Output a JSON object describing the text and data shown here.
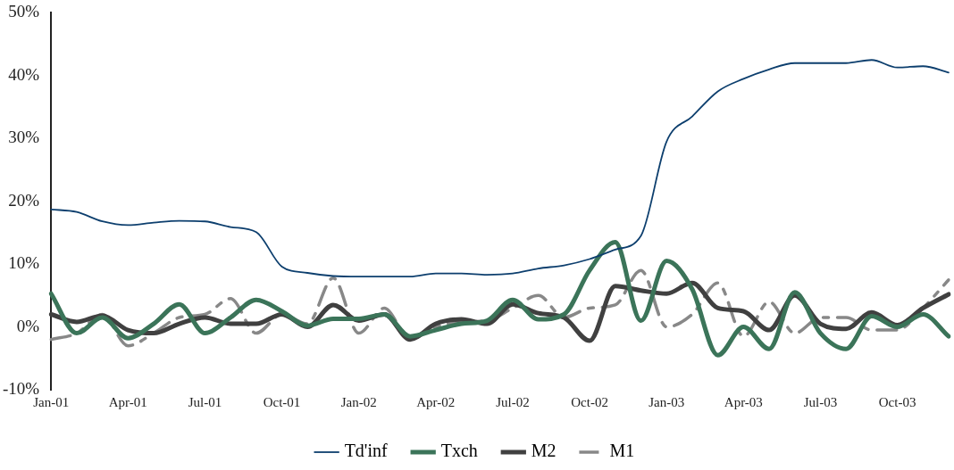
{
  "chart_data": {
    "type": "line",
    "categories": [
      "Jan-01",
      null,
      null,
      "Apr-01",
      null,
      null,
      "Jul-01",
      null,
      null,
      "Oct-01",
      null,
      null,
      "Jan-02",
      null,
      null,
      "Apr-02",
      null,
      null,
      "Jul-02",
      null,
      null,
      "Oct-02",
      null,
      null,
      "Jan-03",
      null,
      null,
      "Apr-03",
      null,
      null,
      "Jul-03",
      null,
      null,
      "Oct-03",
      null,
      null
    ],
    "series": [
      {
        "name": "Td'inf",
        "color": "#0d3f6e",
        "line_style": "solid",
        "values": [
          18.7,
          18.3,
          16.8,
          16.2,
          16.6,
          16.9,
          16.8,
          15.9,
          15.1,
          9.6,
          8.6,
          8.1,
          8.0,
          8.0,
          8.0,
          8.5,
          8.5,
          8.3,
          8.5,
          9.3,
          9.8,
          10.8,
          12.3,
          14.5,
          29.5,
          33.5,
          37.5,
          39.5,
          41,
          42,
          42,
          42,
          42.5,
          41.3,
          41.5,
          40.5
        ]
      },
      {
        "name": "Txch",
        "color": "#3b7459",
        "line_style": "solid",
        "values": [
          5.3,
          -1,
          1.5,
          -1.8,
          0.5,
          3.6,
          -1,
          1.5,
          4.3,
          2.5,
          0.2,
          1.3,
          1.3,
          2,
          -1.5,
          -0.5,
          0.5,
          1,
          4.3,
          1.2,
          2,
          9,
          13.5,
          1,
          10.5,
          6,
          -4.5,
          0,
          -3.5,
          5.5,
          -1,
          -3.5,
          1.7,
          0,
          2,
          -1.5
        ]
      },
      {
        "name": "M2",
        "color": "#404040",
        "line_style": "solid",
        "values": [
          2,
          0.8,
          1.8,
          -0.5,
          -1,
          0.5,
          1.5,
          0.5,
          0.5,
          2,
          0,
          3.5,
          1,
          2,
          -2,
          0.5,
          1.2,
          0.5,
          3.6,
          2.2,
          1.5,
          -2.2,
          6.5,
          5.8,
          5.3,
          7,
          3,
          2.5,
          -0.5,
          5,
          0.5,
          -0.3,
          2.3,
          0.3,
          3,
          5.2
        ]
      },
      {
        "name": "M1",
        "color": "#888888",
        "line_style": "dashed",
        "values": [
          -2,
          -1,
          2,
          -3,
          -1,
          1.5,
          2,
          4.5,
          -1,
          2,
          0.5,
          7.8,
          -1,
          3,
          -2,
          0,
          0.8,
          1,
          3,
          5,
          1.5,
          3,
          3.5,
          9,
          0,
          2,
          7,
          -1.5,
          4,
          -1,
          1.5,
          1.5,
          -0.5,
          -0.5,
          3,
          7.5
        ]
      }
    ],
    "ylim": [
      -10,
      50
    ],
    "yticks": [
      {
        "value": -10,
        "label": "-10%"
      },
      {
        "value": 0,
        "label": "0%"
      },
      {
        "value": 10,
        "label": "10%"
      },
      {
        "value": 20,
        "label": "20%"
      },
      {
        "value": 30,
        "label": "30%"
      },
      {
        "value": 40,
        "label": "40%"
      },
      {
        "value": 50,
        "label": "50%"
      }
    ],
    "grid": false,
    "legend": "bottom",
    "marker": "none"
  }
}
